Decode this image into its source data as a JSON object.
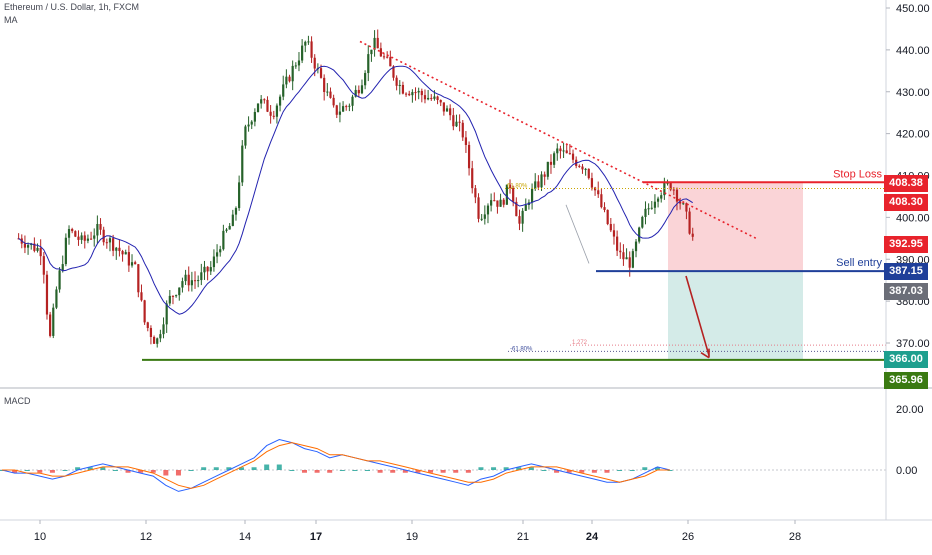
{
  "header": {
    "symbol_line": "Ethereum / U.S. Dollar, 1h, FXCM",
    "indicator": "MA"
  },
  "macd": {
    "label": "MACD"
  },
  "annotations": {
    "stop_loss": "Stop Loss",
    "sell_entry": "Sell entry",
    "fib_upper": "61.80%",
    "fib_ext": "1.272",
    "fib_lower": "-61.80%"
  },
  "price_labels": {
    "stop_loss": "408.38",
    "ma_value": "408.30",
    "last_price": "392.95",
    "sell_entry": "387.15",
    "crosshair": "387.03",
    "take_profit": "366.00",
    "support": "365.96"
  },
  "colors": {
    "stop": "#e8232c",
    "entry": "#1f3f99",
    "target": "#3a7a12",
    "up_candle": "#26622a",
    "down_candle": "#b52222",
    "ma_line": "#2323b0",
    "loss_zone": "#f9cdd0",
    "profit_zone": "#cfe9e6"
  },
  "chart_data": [
    {
      "type": "candlestick",
      "title": "Ethereum / U.S. Dollar, 1h, FXCM",
      "x_ticks": [
        "10",
        "12",
        "14",
        "17",
        "19",
        "21",
        "24",
        "26",
        "28"
      ],
      "y_ticks": [
        "450.00",
        "440.00",
        "430.00",
        "420.00",
        "410.00",
        "400.00",
        "390.00",
        "380.00",
        "370.00"
      ],
      "ylim": [
        362,
        452
      ],
      "series": [
        {
          "kind": "close_path",
          "points": [
            [
              "9.55",
              395
            ],
            [
              "9.85",
              393
            ],
            [
              "10.05",
              392
            ],
            [
              "10.2",
              370
            ],
            [
              "10.35",
              383
            ],
            [
              "10.6",
              397
            ],
            [
              "10.9",
              394
            ],
            [
              "11.2",
              397
            ],
            [
              "11.6",
              393
            ],
            [
              "12.0",
              388
            ],
            [
              "12.2",
              375
            ],
            [
              "12.45",
              370
            ],
            [
              "12.7",
              380
            ],
            [
              "13.0",
              385
            ],
            [
              "13.3",
              385
            ],
            [
              "13.6",
              388
            ],
            [
              "13.8",
              394
            ],
            [
              "14.1",
              400
            ],
            [
              "14.3",
              420
            ],
            [
              "14.6",
              428
            ],
            [
              "14.9",
              425
            ],
            [
              "15.3",
              435
            ],
            [
              "15.6",
              442
            ],
            [
              "15.95",
              432
            ],
            [
              "16.2",
              425
            ],
            [
              "16.5",
              427
            ],
            [
              "16.75",
              432
            ],
            [
              "17.0",
              442
            ],
            [
              "17.3",
              437
            ],
            [
              "17.6",
              431
            ],
            [
              "17.9",
              430
            ],
            [
              "18.3",
              428
            ],
            [
              "18.6",
              425
            ],
            [
              "18.9",
              420
            ],
            [
              "19.1",
              408
            ],
            [
              "19.25",
              400
            ],
            [
              "19.5",
              405
            ],
            [
              "19.7",
              403
            ],
            [
              "19.9",
              408
            ],
            [
              "20.1",
              398
            ],
            [
              "20.3",
              405
            ],
            [
              "20.6",
              410
            ],
            [
              "20.9",
              416
            ],
            [
              "21.2",
              414
            ],
            [
              "21.5",
              412
            ],
            [
              "21.8",
              403
            ],
            [
              "22.0",
              397
            ],
            [
              "22.2",
              391
            ],
            [
              "22.45",
              389
            ],
            [
              "22.7",
              400
            ],
            [
              "23.0",
              406
            ],
            [
              "23.3",
              408
            ],
            [
              "23.55",
              402
            ],
            [
              "23.8",
              393
            ]
          ]
        }
      ],
      "moving_average": "MA",
      "levels": [
        {
          "name": "Stop Loss",
          "value": 408.38
        },
        {
          "name": "Sell entry",
          "value": 387.15
        },
        {
          "name": "Take profit",
          "value": 366.0
        },
        {
          "name": "Support",
          "value": 365.96
        }
      ],
      "fibonacci": [
        {
          "label": "61.80%",
          "value": 406.9
        },
        {
          "label": "1.272",
          "value": 369.5
        },
        {
          "label": "-61.80%",
          "value": 368.0
        }
      ],
      "last_price": 392.95
    },
    {
      "type": "line",
      "title": "MACD",
      "y_ticks": [
        "20.00",
        "0.00"
      ],
      "ylim": [
        -14,
        24
      ],
      "series": [
        {
          "kind": "macd",
          "values": [
            0,
            -1,
            -1,
            -2,
            -3,
            -2,
            0,
            1,
            2,
            1,
            0,
            -1,
            -2,
            -5,
            -7,
            -6,
            -4,
            -2,
            0,
            2,
            4,
            8,
            10,
            9,
            7,
            6,
            4,
            5,
            4,
            3,
            2,
            1,
            0,
            -1,
            -2,
            -3,
            -4,
            -5,
            -3,
            -2,
            0,
            1,
            2,
            1,
            0,
            -1,
            -2,
            -3,
            -4,
            -4,
            -3,
            -1,
            1,
            0
          ]
        },
        {
          "kind": "signal",
          "values": [
            0,
            0,
            -1,
            -1,
            -2,
            -2,
            -1,
            0,
            1,
            1,
            1,
            0,
            -1,
            -3,
            -5,
            -6,
            -5,
            -3,
            -1,
            1,
            3,
            6,
            8,
            9,
            8,
            7,
            5,
            5,
            4,
            3,
            3,
            2,
            1,
            0,
            -1,
            -2,
            -3,
            -4,
            -4,
            -3,
            -1,
            0,
            1,
            1,
            1,
            0,
            -1,
            -2,
            -3,
            -4,
            -3,
            -2,
            0,
            0
          ]
        }
      ]
    }
  ]
}
